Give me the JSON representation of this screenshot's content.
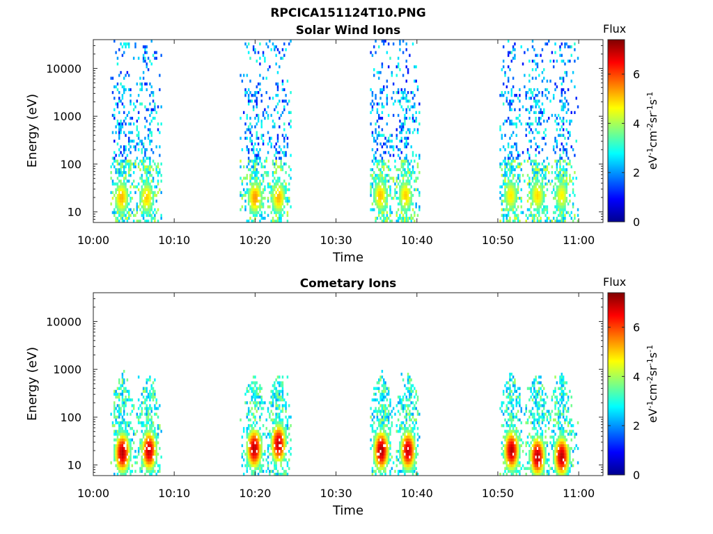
{
  "figure_title": "RPCICA151124T10.PNG",
  "chart_data": [
    {
      "type": "heatmap",
      "title": "Solar Wind Ions",
      "xlabel": "Time",
      "ylabel": "Energy (eV)",
      "x_ticks": [
        "10:00",
        "10:10",
        "10:20",
        "10:30",
        "10:40",
        "10:50",
        "11:00"
      ],
      "y_ticks": [
        "10",
        "100",
        "1000",
        "10000"
      ],
      "y_scale": "log",
      "ylim": [
        6,
        40000
      ],
      "xlim_minutes": [
        0,
        63
      ],
      "colorbar": {
        "title": "Flux",
        "label": "eV-1cm-2sr-1s-1",
        "ticks": [
          0,
          2,
          4,
          6
        ],
        "range": [
          0,
          7.4
        ],
        "colormap": "jet"
      },
      "measurement_blocks_minutes": [
        [
          2.1,
          8.4
        ],
        [
          18.1,
          24.4
        ],
        [
          34.2,
          40.4
        ],
        [
          50.2,
          59.9
        ]
      ],
      "flux_peaks": [
        {
          "time_min": 3.5,
          "energy_eV": 20,
          "flux": 5.2
        },
        {
          "time_min": 6.6,
          "energy_eV": 20,
          "flux": 5.0
        },
        {
          "time_min": 20.0,
          "energy_eV": 20,
          "flux": 5.4
        },
        {
          "time_min": 22.9,
          "energy_eV": 20,
          "flux": 5.2
        },
        {
          "time_min": 35.5,
          "energy_eV": 22,
          "flux": 5.1
        },
        {
          "time_min": 38.6,
          "energy_eV": 22,
          "flux": 5.0
        },
        {
          "time_min": 51.6,
          "energy_eV": 22,
          "flux": 4.8
        },
        {
          "time_min": 54.9,
          "energy_eV": 22,
          "flux": 4.9
        },
        {
          "time_min": 57.9,
          "energy_eV": 22,
          "flux": 4.7
        }
      ]
    },
    {
      "type": "heatmap",
      "title": "Cometary Ions",
      "xlabel": "Time",
      "ylabel": "Energy (eV)",
      "x_ticks": [
        "10:00",
        "10:10",
        "10:20",
        "10:30",
        "10:40",
        "10:50",
        "11:00"
      ],
      "y_ticks": [
        "10",
        "100",
        "1000",
        "10000"
      ],
      "y_scale": "log",
      "ylim": [
        6,
        40000
      ],
      "xlim_minutes": [
        0,
        63
      ],
      "colorbar": {
        "title": "Flux",
        "label": "eV-1cm-2sr-1s-1",
        "ticks": [
          0,
          2,
          4,
          6
        ],
        "range": [
          0,
          7.4
        ],
        "colormap": "jet"
      },
      "measurement_blocks_minutes": [
        [
          2.1,
          8.4
        ],
        [
          18.1,
          24.4
        ],
        [
          34.2,
          40.4
        ],
        [
          50.2,
          59.9
        ]
      ],
      "flux_peaks": [
        {
          "time_min": 3.6,
          "energy_eV": 18,
          "flux": 7.0
        },
        {
          "time_min": 6.9,
          "energy_eV": 20,
          "flux": 6.9
        },
        {
          "time_min": 19.9,
          "energy_eV": 22,
          "flux": 7.0
        },
        {
          "time_min": 22.9,
          "energy_eV": 28,
          "flux": 6.9
        },
        {
          "time_min": 35.6,
          "energy_eV": 20,
          "flux": 7.1
        },
        {
          "time_min": 38.9,
          "energy_eV": 20,
          "flux": 6.9
        },
        {
          "time_min": 51.7,
          "energy_eV": 20,
          "flux": 7.0
        },
        {
          "time_min": 54.9,
          "energy_eV": 15,
          "flux": 7.0
        },
        {
          "time_min": 57.9,
          "energy_eV": 15,
          "flux": 7.0
        }
      ]
    }
  ]
}
